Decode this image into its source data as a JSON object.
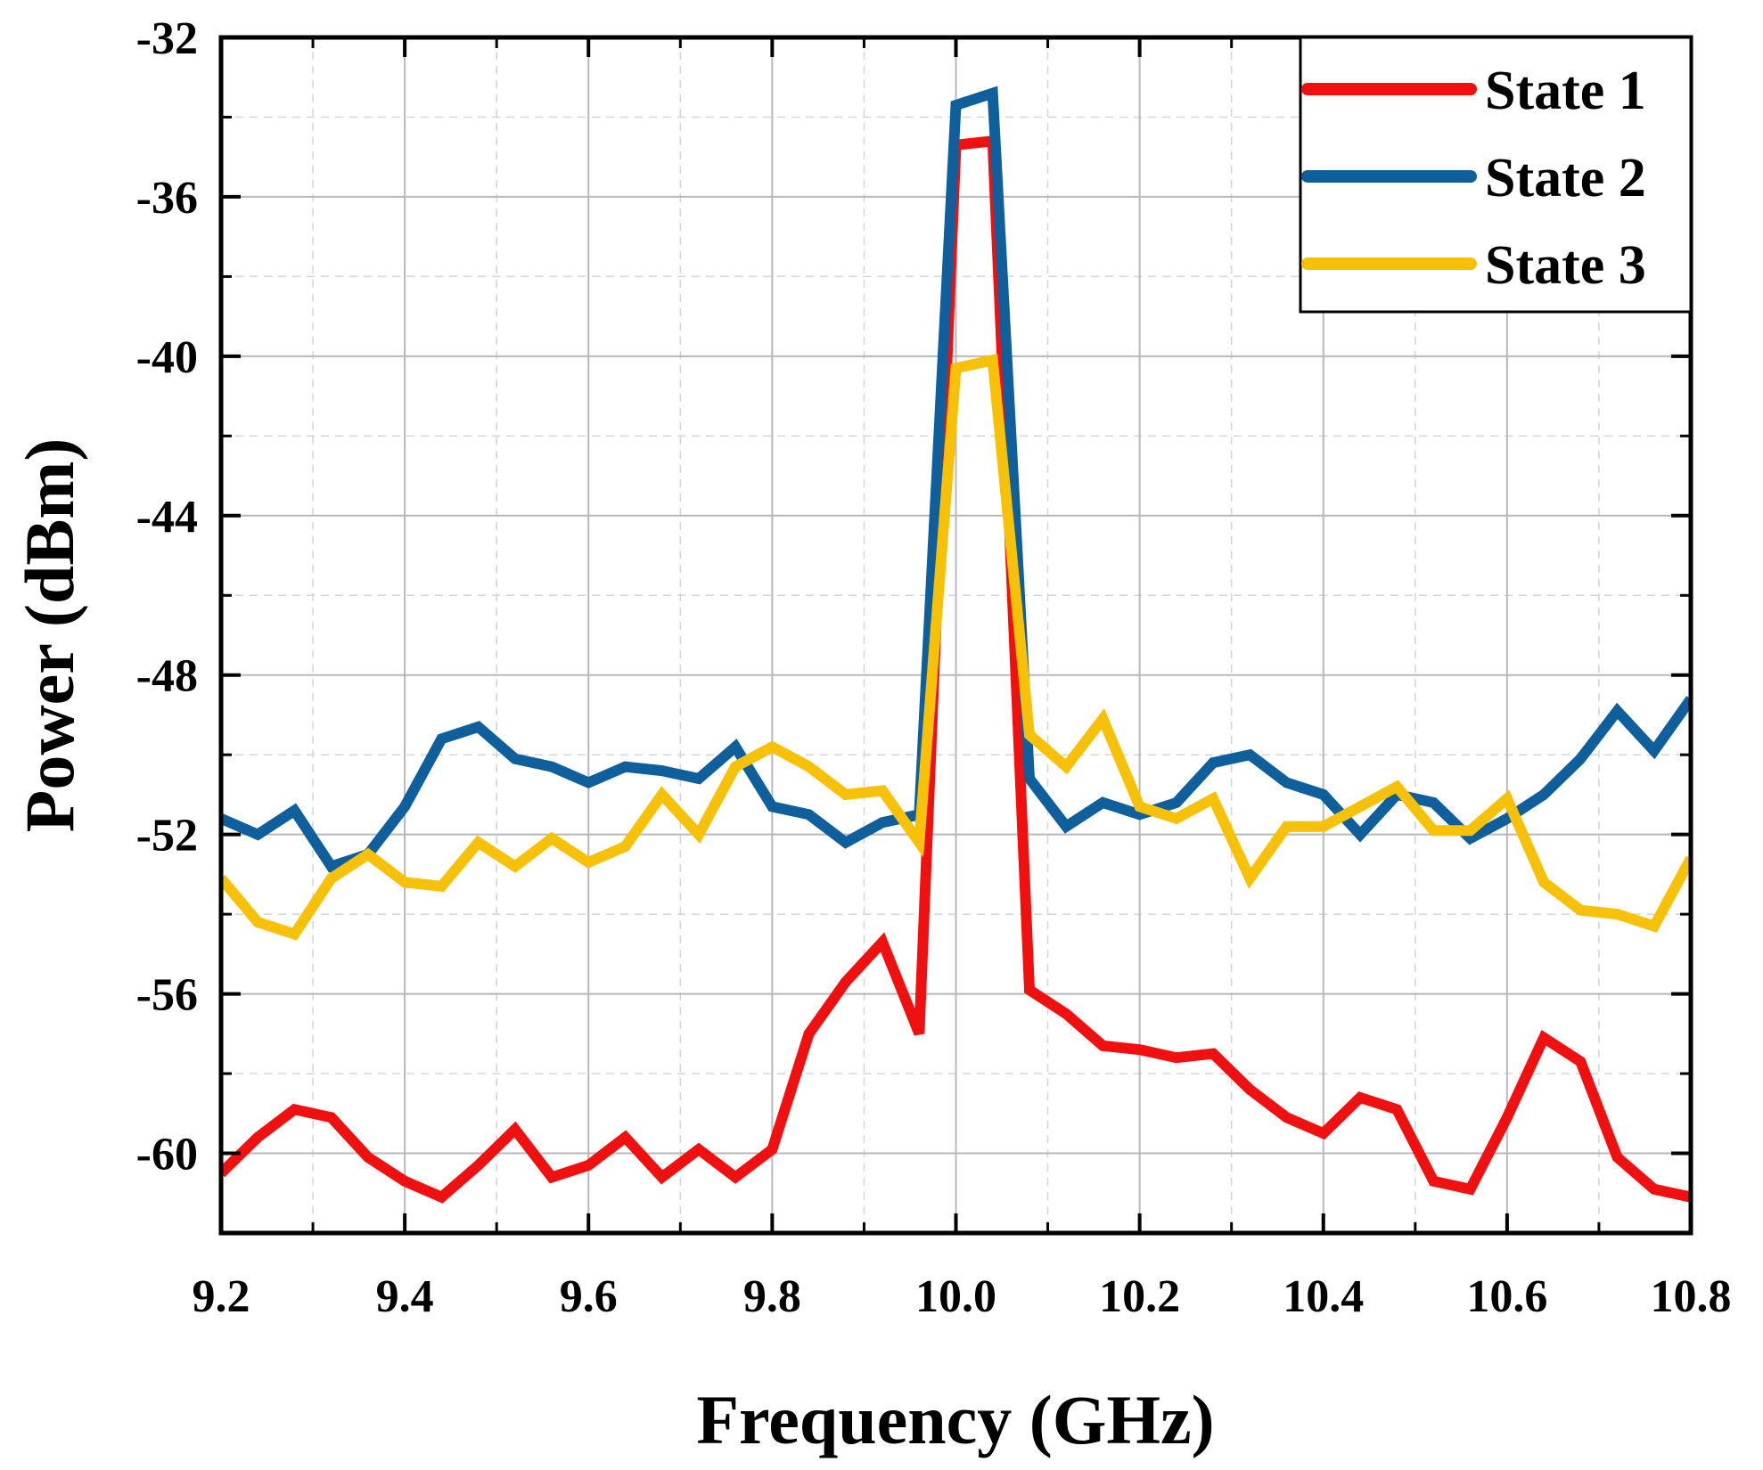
{
  "chart_data": {
    "type": "line",
    "title": "",
    "xlabel": "Frequency (GHz)",
    "ylabel": "Power (dBm)",
    "xlim": [
      9.2,
      10.8
    ],
    "ylim": [
      -62,
      -32
    ],
    "grid": true,
    "legend_position": "top-right",
    "x_ticks": [
      {
        "value": 9.2,
        "label": "9.2"
      },
      {
        "value": 9.4,
        "label": "9.4"
      },
      {
        "value": 9.6,
        "label": "9.6"
      },
      {
        "value": 9.8,
        "label": "9.8"
      },
      {
        "value": 10.0,
        "label": "10.0"
      },
      {
        "value": 10.2,
        "label": "10.2"
      },
      {
        "value": 10.4,
        "label": "10.4"
      },
      {
        "value": 10.6,
        "label": "10.6"
      },
      {
        "value": 10.8,
        "label": "10.8"
      }
    ],
    "y_ticks": [
      {
        "value": -32,
        "label": "-32"
      },
      {
        "value": -36,
        "label": "-36"
      },
      {
        "value": -40,
        "label": "-40"
      },
      {
        "value": -44,
        "label": "-44"
      },
      {
        "value": -48,
        "label": "-48"
      },
      {
        "value": -52,
        "label": "-52"
      },
      {
        "value": -56,
        "label": "-56"
      },
      {
        "value": -60,
        "label": "-60"
      }
    ],
    "series": [
      {
        "name": "State 1",
        "color": "#f01010",
        "x": [
          9.2,
          9.24,
          9.28,
          9.32,
          9.36,
          9.4,
          9.44,
          9.48,
          9.52,
          9.56,
          9.6,
          9.64,
          9.68,
          9.72,
          9.76,
          9.8,
          9.84,
          9.88,
          9.92,
          9.96,
          10.0,
          10.04,
          10.08,
          10.12,
          10.16,
          10.2,
          10.24,
          10.28,
          10.32,
          10.36,
          10.4,
          10.44,
          10.48,
          10.52,
          10.56,
          10.6,
          10.64,
          10.68,
          10.72,
          10.76,
          10.8
        ],
        "values": [
          -60.5,
          -59.6,
          -58.9,
          -59.1,
          -60.1,
          -60.7,
          -61.1,
          -60.3,
          -59.4,
          -60.6,
          -60.3,
          -59.6,
          -60.6,
          -59.9,
          -60.6,
          -59.9,
          -57.0,
          -55.7,
          -54.7,
          -57.0,
          -34.7,
          -34.6,
          -55.9,
          -56.5,
          -57.3,
          -57.4,
          -57.6,
          -57.5,
          -58.4,
          -59.1,
          -59.5,
          -58.6,
          -58.9,
          -60.7,
          -60.9,
          -59.1,
          -57.1,
          -57.7,
          -60.1,
          -60.9,
          -61.1
        ]
      },
      {
        "name": "State 2",
        "color": "#0e5f9c",
        "x": [
          9.2,
          9.24,
          9.28,
          9.32,
          9.36,
          9.4,
          9.44,
          9.48,
          9.52,
          9.56,
          9.6,
          9.64,
          9.68,
          9.72,
          9.76,
          9.8,
          9.84,
          9.88,
          9.92,
          9.96,
          10.0,
          10.04,
          10.08,
          10.12,
          10.16,
          10.2,
          10.24,
          10.28,
          10.32,
          10.36,
          10.4,
          10.44,
          10.48,
          10.52,
          10.56,
          10.6,
          10.64,
          10.68,
          10.72,
          10.76,
          10.8
        ],
        "values": [
          -51.6,
          -52.0,
          -51.4,
          -52.8,
          -52.5,
          -51.3,
          -49.6,
          -49.3,
          -50.1,
          -50.3,
          -50.7,
          -50.3,
          -50.4,
          -50.6,
          -49.8,
          -51.3,
          -51.5,
          -52.2,
          -51.7,
          -51.5,
          -33.7,
          -33.4,
          -50.6,
          -51.8,
          -51.2,
          -51.5,
          -51.2,
          -50.2,
          -50.0,
          -50.7,
          -51.0,
          -52.0,
          -51.0,
          -51.2,
          -52.1,
          -51.6,
          -51.0,
          -50.1,
          -48.9,
          -49.9,
          -48.6
        ]
      },
      {
        "name": "State 3",
        "color": "#f7c107",
        "x": [
          9.2,
          9.24,
          9.28,
          9.32,
          9.36,
          9.4,
          9.44,
          9.48,
          9.52,
          9.56,
          9.6,
          9.64,
          9.68,
          9.72,
          9.76,
          9.8,
          9.84,
          9.88,
          9.92,
          9.96,
          10.0,
          10.04,
          10.08,
          10.12,
          10.16,
          10.2,
          10.24,
          10.28,
          10.32,
          10.36,
          10.4,
          10.44,
          10.48,
          10.52,
          10.56,
          10.6,
          10.64,
          10.68,
          10.72,
          10.76,
          10.8
        ],
        "values": [
          -53.1,
          -54.2,
          -54.5,
          -53.1,
          -52.5,
          -53.2,
          -53.3,
          -52.2,
          -52.8,
          -52.1,
          -52.7,
          -52.3,
          -51.0,
          -52.0,
          -50.3,
          -49.8,
          -50.3,
          -51.0,
          -50.9,
          -52.2,
          -40.3,
          -40.1,
          -49.5,
          -50.3,
          -49.1,
          -51.3,
          -51.6,
          -51.1,
          -53.1,
          -51.8,
          -51.8,
          -51.3,
          -50.8,
          -51.9,
          -51.9,
          -51.1,
          -53.2,
          -53.9,
          -54.0,
          -54.3,
          -52.6
        ]
      }
    ]
  }
}
